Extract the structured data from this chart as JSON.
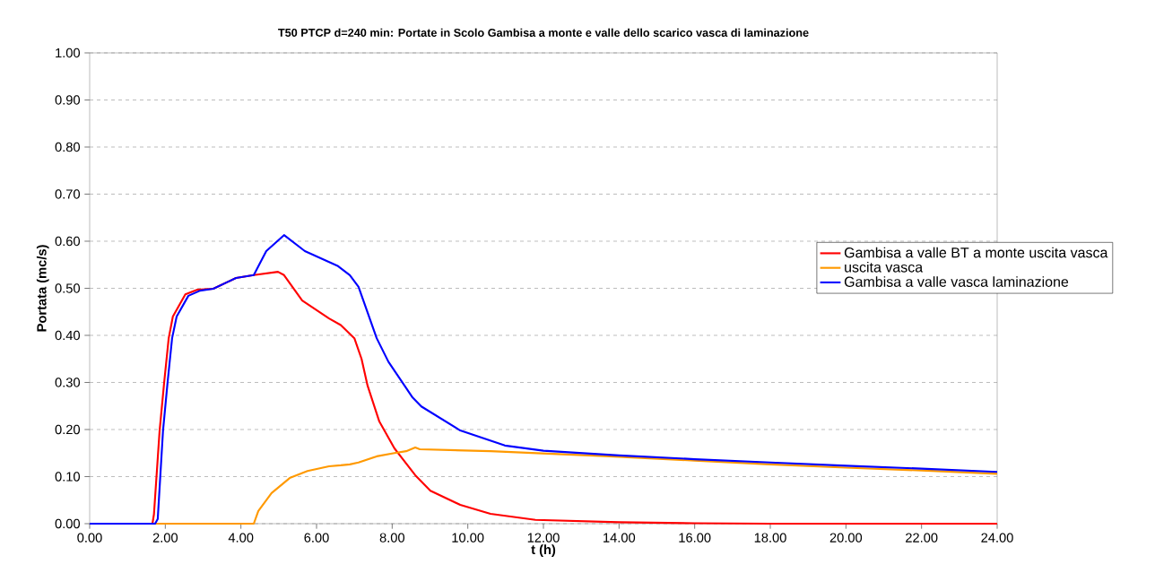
{
  "chart_data": {
    "type": "line",
    "title": "T50 PTCP d=240 min: Portate in Scolo Gambisa a monte e valle dello scarico vasca di laminazione",
    "xlabel": "t (h)",
    "ylabel": "Portata (mc/s)",
    "xlim": [
      0,
      24
    ],
    "ylim": [
      0,
      1
    ],
    "xticks": [
      {
        "value": 0,
        "label": "0.00"
      },
      {
        "value": 2,
        "label": "2.00"
      },
      {
        "value": 4,
        "label": "4.00"
      },
      {
        "value": 6,
        "label": "6.00"
      },
      {
        "value": 8,
        "label": "8.00"
      },
      {
        "value": 10,
        "label": "10.00"
      },
      {
        "value": 12,
        "label": "12.00"
      },
      {
        "value": 14,
        "label": "14.00"
      },
      {
        "value": 16,
        "label": "16.00"
      },
      {
        "value": 18,
        "label": "18.00"
      },
      {
        "value": 20,
        "label": "20.00"
      },
      {
        "value": 22,
        "label": "22.00"
      },
      {
        "value": 24,
        "label": "24.00"
      }
    ],
    "yticks": [
      {
        "value": 0,
        "label": "0.00"
      },
      {
        "value": 0.1,
        "label": "0.10"
      },
      {
        "value": 0.2,
        "label": "0.20"
      },
      {
        "value": 0.3,
        "label": "0.30"
      },
      {
        "value": 0.4,
        "label": "0.40"
      },
      {
        "value": 0.5,
        "label": "0.50"
      },
      {
        "value": 0.6,
        "label": "0.60"
      },
      {
        "value": 0.7,
        "label": "0.70"
      },
      {
        "value": 0.8,
        "label": "0.80"
      },
      {
        "value": 0.9,
        "label": "0.90"
      },
      {
        "value": 1,
        "label": "1.00"
      }
    ],
    "grid": "y",
    "legend": "right",
    "marker": "none",
    "line_style": "solid",
    "series": [
      {
        "name": "Gambisa a valle BT a monte uscita vasca",
        "color": "#ff0000",
        "x": [
          0,
          1.66,
          1.7,
          1.85,
          1.97,
          2.09,
          2.2,
          2.53,
          2.85,
          3.27,
          3.87,
          4.34,
          4.98,
          5.14,
          5.62,
          6.33,
          6.64,
          7.0,
          7.19,
          7.35,
          7.66,
          8.06,
          8.61,
          9.01,
          9.8,
          10.6,
          11.79,
          14,
          16,
          18,
          20,
          22,
          24
        ],
        "values": [
          0,
          0,
          0.02,
          0.198,
          0.3,
          0.394,
          0.44,
          0.487,
          0.497,
          0.499,
          0.522,
          0.528,
          0.535,
          0.528,
          0.474,
          0.436,
          0.422,
          0.394,
          0.35,
          0.293,
          0.217,
          0.16,
          0.103,
          0.07,
          0.04,
          0.021,
          0.008,
          0.003,
          0.001,
          0,
          0,
          0,
          0
        ]
      },
      {
        "name": "uscita vasca",
        "color": "#ff9900",
        "x": [
          0,
          4.34,
          4.46,
          4.81,
          5.29,
          5.76,
          6.33,
          6.64,
          6.88,
          7.11,
          7.59,
          8.06,
          8.37,
          8.61,
          8.73,
          10.6,
          13.75,
          16,
          18,
          20,
          22,
          24
        ],
        "values": [
          0,
          0,
          0.027,
          0.065,
          0.097,
          0.112,
          0.122,
          0.124,
          0.126,
          0.13,
          0.143,
          0.15,
          0.154,
          0.162,
          0.158,
          0.154,
          0.143,
          0.134,
          0.126,
          0.119,
          0.113,
          0.106
        ]
      },
      {
        "name": "Gambisa a valle vasca laminazione",
        "color": "#0000ff",
        "x": [
          0,
          1.73,
          1.8,
          1.94,
          2.06,
          2.18,
          2.3,
          2.61,
          2.92,
          3.27,
          3.87,
          4.34,
          4.67,
          5.14,
          5.69,
          6.57,
          6.88,
          7.11,
          7.59,
          7.9,
          8.54,
          8.77,
          9.8,
          10.98,
          12,
          14,
          16,
          18,
          20,
          22,
          24
        ],
        "values": [
          0,
          0,
          0.01,
          0.198,
          0.3,
          0.394,
          0.44,
          0.484,
          0.495,
          0.499,
          0.522,
          0.528,
          0.579,
          0.613,
          0.579,
          0.547,
          0.528,
          0.503,
          0.394,
          0.344,
          0.268,
          0.249,
          0.198,
          0.166,
          0.155,
          0.145,
          0.137,
          0.13,
          0.123,
          0.117,
          0.11
        ]
      }
    ]
  }
}
